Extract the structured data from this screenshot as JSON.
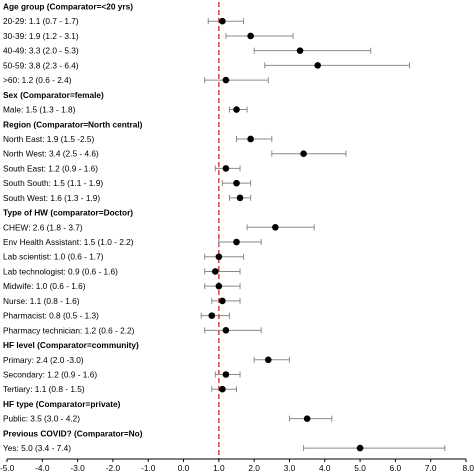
{
  "chart_data": {
    "type": "forest",
    "title": "",
    "xlabel": "",
    "ylabel": "",
    "xlim": [
      -5.0,
      8.0
    ],
    "x_ticks": [
      "-5.0",
      "-4.0",
      "-3.0",
      "-2.0",
      "-1.0",
      "0.0",
      "1.0",
      "2.0",
      "3.0",
      "4.0",
      "5.0",
      "6.0",
      "7.0",
      "8.0"
    ],
    "reference_line": {
      "x": 1.0,
      "style": "dashed",
      "color": "#d62728"
    },
    "grid": false,
    "rows": [
      {
        "label": "Age group (Comparator=<20 yrs)",
        "header": true
      },
      {
        "label": "20-29: 1.1 (0.7 - 1.7)",
        "or": 1.1,
        "lo": 0.7,
        "hi": 1.7
      },
      {
        "label": "30-39: 1.9 (1.2 - 3.1)",
        "or": 1.9,
        "lo": 1.2,
        "hi": 3.1
      },
      {
        "label": "40-49: 3.3 (2.0 - 5.3)",
        "or": 3.3,
        "lo": 2.0,
        "hi": 5.3
      },
      {
        "label": "50-59: 3.8 (2.3 - 6.4)",
        "or": 3.8,
        "lo": 2.3,
        "hi": 6.4
      },
      {
        "label": ">60: 1.2 (0.6 - 2.4)",
        "or": 1.2,
        "lo": 0.6,
        "hi": 2.4
      },
      {
        "label": "Sex (Comparator=female)",
        "header": true
      },
      {
        "label": "Male: 1.5 (1.3 - 1.8)",
        "or": 1.5,
        "lo": 1.3,
        "hi": 1.8
      },
      {
        "label": "Region (Comparator=North central)",
        "header": true
      },
      {
        "label": "North East: 1.9 (1.5 -2.5)",
        "or": 1.9,
        "lo": 1.5,
        "hi": 2.5
      },
      {
        "label": "North West: 3.4 (2.5 - 4.6)",
        "or": 3.4,
        "lo": 2.5,
        "hi": 4.6
      },
      {
        "label": "South East: 1.2 (0.9 - 1.6)",
        "or": 1.2,
        "lo": 0.9,
        "hi": 1.6
      },
      {
        "label": "South South: 1.5 (1.1 - 1.9)",
        "or": 1.5,
        "lo": 1.1,
        "hi": 1.9
      },
      {
        "label": "South West: 1.6 (1.3 - 1.9)",
        "or": 1.6,
        "lo": 1.3,
        "hi": 1.9
      },
      {
        "label": "Type of HW (comparator=Doctor)",
        "header": true
      },
      {
        "label": "CHEW: 2.6 (1.8 - 3.7)",
        "or": 2.6,
        "lo": 1.8,
        "hi": 3.7
      },
      {
        "label": "Env Health Assistant: 1.5 (1.0 - 2.2)",
        "or": 1.5,
        "lo": 1.0,
        "hi": 2.2
      },
      {
        "label": "Lab scientist: 1.0 (0.6 - 1.7)",
        "or": 1.0,
        "lo": 0.6,
        "hi": 1.7
      },
      {
        "label": "Lab technologist: 0.9 (0.6 - 1.6)",
        "or": 0.9,
        "lo": 0.6,
        "hi": 1.6
      },
      {
        "label": "Midwife: 1.0 (0.6 - 1.6)",
        "or": 1.0,
        "lo": 0.6,
        "hi": 1.6
      },
      {
        "label": "Nurse: 1.1 (0.8 - 1.6)",
        "or": 1.1,
        "lo": 0.8,
        "hi": 1.6
      },
      {
        "label": "Pharmacist: 0.8 (0.5 - 1.3)",
        "or": 0.8,
        "lo": 0.5,
        "hi": 1.3
      },
      {
        "label": "Pharmacy technician: 1.2 (0.6 - 2.2)",
        "or": 1.2,
        "lo": 0.6,
        "hi": 2.2
      },
      {
        "label": "HF level (Comparator=community)",
        "header": true
      },
      {
        "label": "Primary: 2.4 (2.0 -3.0)",
        "or": 2.4,
        "lo": 2.0,
        "hi": 3.0
      },
      {
        "label": "Secondary: 1.2 (0.9 - 1.6)",
        "or": 1.2,
        "lo": 0.9,
        "hi": 1.6
      },
      {
        "label": "Tertiary: 1.1 (0.8 - 1.5)",
        "or": 1.1,
        "lo": 0.8,
        "hi": 1.5
      },
      {
        "label": "HF type (Comparator=private)",
        "header": true
      },
      {
        "label": "Public: 3.5 (3.0 - 4.2)",
        "or": 3.5,
        "lo": 3.0,
        "hi": 4.2
      },
      {
        "label": "Previous COVID? (Comparator=No)",
        "header": true
      },
      {
        "label": "Yes: 5.0 (3.4 - 7.4)",
        "or": 5.0,
        "lo": 3.4,
        "hi": 7.4
      }
    ]
  }
}
